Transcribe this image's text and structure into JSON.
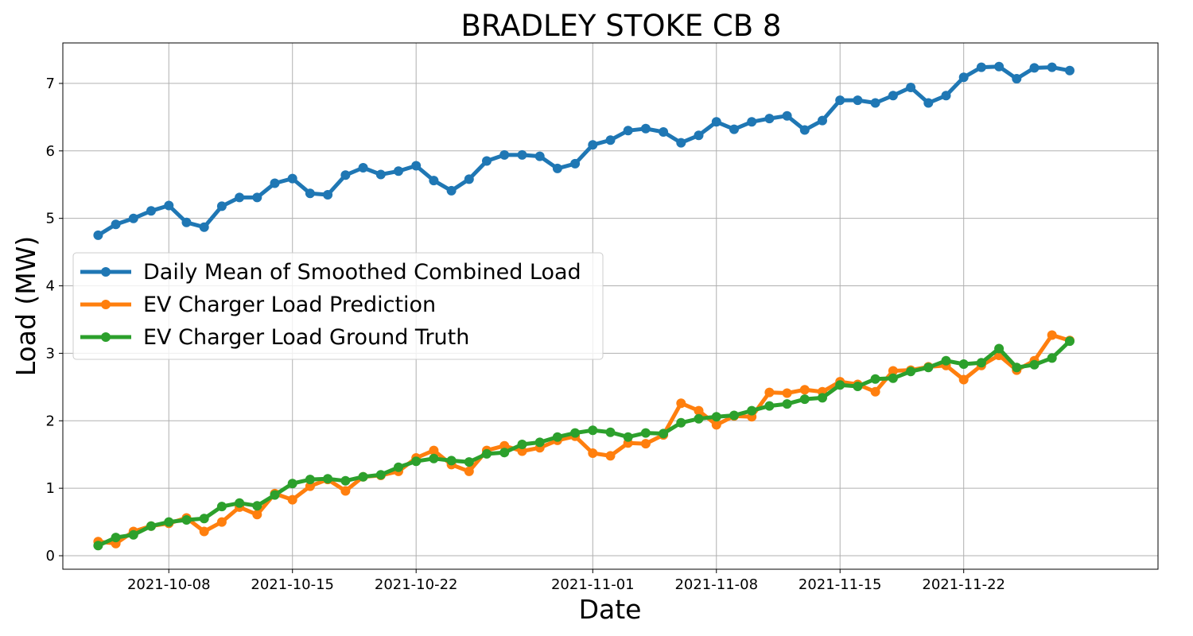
{
  "chart_data": {
    "type": "line",
    "title": "BRADLEY STOKE CB 8",
    "xlabel": "Date",
    "ylabel": "Load (MW)",
    "x_start": "2021-10-04",
    "x_step_days": 1,
    "xlim": [
      "2021-10-02",
      "2021-12-03"
    ],
    "ylim": [
      -0.2,
      7.6
    ],
    "x_ticks": [
      "2021-10-08",
      "2021-10-15",
      "2021-10-22",
      "2021-11-01",
      "2021-11-08",
      "2021-11-15",
      "2021-11-22"
    ],
    "y_ticks": [
      "0",
      "1",
      "2",
      "3",
      "4",
      "5",
      "6",
      "7"
    ],
    "grid": true,
    "legend_position": "center-left",
    "series": [
      {
        "name": "Daily Mean of Smoothed Combined Load",
        "color": "#1f77b4",
        "values": [
          4.75,
          4.91,
          5.0,
          5.11,
          5.19,
          4.94,
          4.87,
          5.18,
          5.31,
          5.31,
          5.52,
          5.59,
          5.37,
          5.35,
          5.64,
          5.75,
          5.65,
          5.7,
          5.78,
          5.56,
          5.41,
          5.58,
          5.85,
          5.94,
          5.94,
          5.92,
          5.74,
          5.81,
          6.09,
          6.16,
          6.3,
          6.33,
          6.28,
          6.12,
          6.23,
          6.43,
          6.32,
          6.43,
          6.48,
          6.52,
          6.31,
          6.45,
          6.75,
          6.75,
          6.71,
          6.82,
          6.94,
          6.71,
          6.82,
          7.09,
          7.24,
          7.25,
          7.07,
          7.23,
          7.24,
          7.19
        ]
      },
      {
        "name": "EV Charger Load Prediction",
        "color": "#ff7f0e",
        "values": [
          0.21,
          0.18,
          0.36,
          0.44,
          0.48,
          0.56,
          0.36,
          0.5,
          0.72,
          0.61,
          0.92,
          0.83,
          1.03,
          1.13,
          0.96,
          1.17,
          1.19,
          1.25,
          1.45,
          1.56,
          1.35,
          1.25,
          1.56,
          1.63,
          1.55,
          1.6,
          1.71,
          1.77,
          1.52,
          1.48,
          1.67,
          1.66,
          1.79,
          2.26,
          2.15,
          1.94,
          2.07,
          2.06,
          2.42,
          2.41,
          2.46,
          2.43,
          2.58,
          2.54,
          2.43,
          2.74,
          2.75,
          2.8,
          2.82,
          2.61,
          2.82,
          2.97,
          2.75,
          2.89,
          3.27,
          3.19
        ]
      },
      {
        "name": "EV Charger Load Ground Truth",
        "color": "#2ca02c",
        "values": [
          0.15,
          0.27,
          0.31,
          0.44,
          0.5,
          0.53,
          0.55,
          0.73,
          0.78,
          0.74,
          0.9,
          1.07,
          1.13,
          1.14,
          1.11,
          1.17,
          1.2,
          1.31,
          1.4,
          1.44,
          1.41,
          1.39,
          1.51,
          1.53,
          1.65,
          1.68,
          1.76,
          1.82,
          1.86,
          1.83,
          1.76,
          1.82,
          1.81,
          1.97,
          2.03,
          2.06,
          2.08,
          2.15,
          2.22,
          2.25,
          2.32,
          2.34,
          2.53,
          2.51,
          2.62,
          2.63,
          2.73,
          2.79,
          2.89,
          2.84,
          2.86,
          3.07,
          2.79,
          2.83,
          2.93,
          3.18
        ]
      }
    ]
  }
}
